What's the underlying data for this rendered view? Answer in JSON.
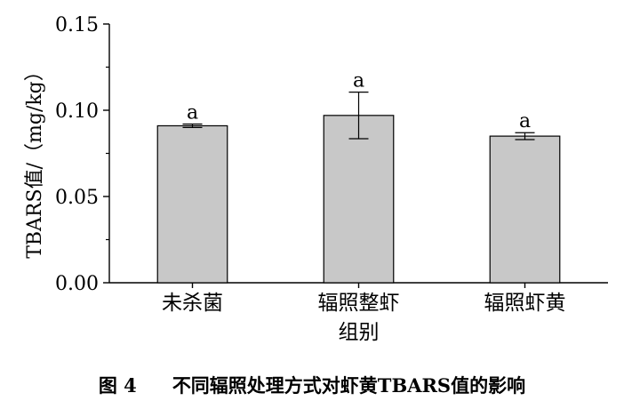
{
  "chart_data": {
    "type": "bar",
    "categories": [
      "未杀菌",
      "辐照整虾组别",
      "辐照虾黄"
    ],
    "category_lines": [
      [
        "未杀菌"
      ],
      [
        "辐照整虾",
        "组别"
      ],
      [
        "辐照虾黄"
      ]
    ],
    "values": [
      0.091,
      0.097,
      0.085
    ],
    "error": [
      0.001,
      0.0135,
      0.002
    ],
    "labels": [
      "a",
      "a",
      "a"
    ],
    "ylabel": "TBARS值/（mg/kg）",
    "xlabel": "",
    "ylim": [
      0,
      0.15
    ],
    "yticks": [
      "0.00",
      "0.05",
      "0.10",
      "0.15"
    ],
    "grid": false,
    "bar_color": "#c8c8c8"
  },
  "caption": {
    "number": "图 4",
    "text": "不同辐照处理方式对虾黄TBARS值的影响"
  }
}
